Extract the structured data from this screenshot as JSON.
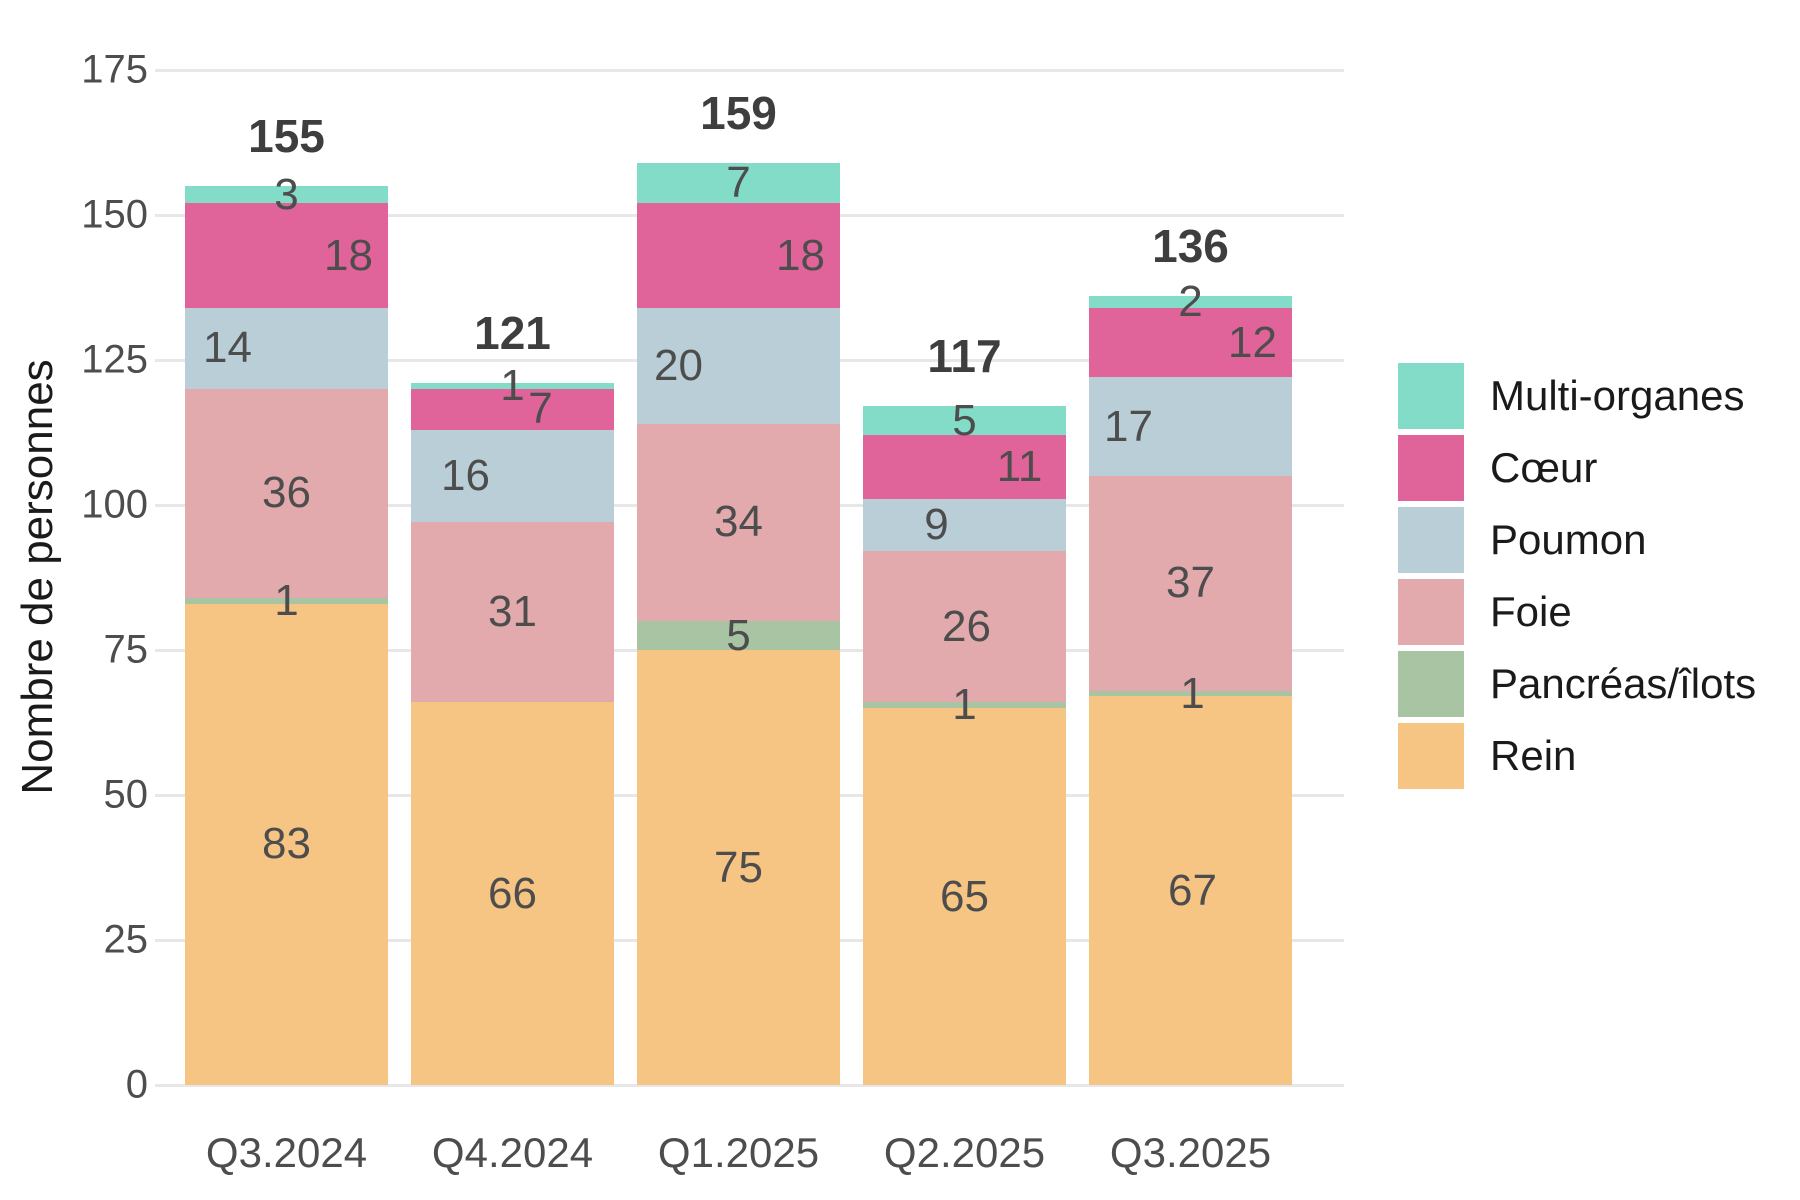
{
  "chart_data": {
    "type": "bar",
    "stacked": true,
    "title": "",
    "xlabel": "",
    "ylabel": "Nombre de personnes",
    "ylim": [
      0,
      175
    ],
    "yticks": [
      0,
      25,
      50,
      75,
      100,
      125,
      150,
      175
    ],
    "grid": "horizontal",
    "legend_position": "right",
    "categories": [
      "Q3.2024",
      "Q4.2024",
      "Q1.2025",
      "Q2.2025",
      "Q3.2025"
    ],
    "series": [
      {
        "name": "Rein",
        "color": "#F6C483",
        "values": [
          83,
          66,
          75,
          65,
          67
        ]
      },
      {
        "name": "Pancréas/îlots",
        "color": "#A8C4A2",
        "values": [
          1,
          0,
          5,
          1,
          1
        ]
      },
      {
        "name": "Foie",
        "color": "#E2AAAC",
        "values": [
          36,
          31,
          34,
          26,
          37
        ]
      },
      {
        "name": "Poumon",
        "color": "#B9CED6",
        "values": [
          14,
          16,
          20,
          9,
          17
        ]
      },
      {
        "name": "Cœur",
        "color": "#E0639A",
        "values": [
          18,
          7,
          18,
          11,
          12
        ]
      },
      {
        "name": "Multi-organes",
        "color": "#82DCC8",
        "values": [
          3,
          1,
          7,
          5,
          2
        ]
      }
    ],
    "totals": [
      155,
      121,
      159,
      117,
      136
    ],
    "legend_order_top_to_bottom": [
      "Multi-organes",
      "Cœur",
      "Poumon",
      "Foie",
      "Pancréas/îlots",
      "Rein"
    ],
    "label_offsets_x": {
      "Rein": [
        0,
        0,
        0,
        0,
        2
      ],
      "Pancréas/îlots": [
        0,
        0,
        0,
        0,
        2
      ],
      "Foie": [
        0,
        0,
        0,
        2,
        0
      ],
      "Poumon": [
        -59,
        -47,
        -60,
        -28,
        -62
      ],
      "Cœur": [
        62,
        28,
        62,
        55,
        62
      ],
      "Multi-organes": [
        0,
        0,
        0,
        0,
        0
      ]
    },
    "colors": {
      "gridline": "#e7e7e7",
      "segment_label": "#4d4d4d",
      "total_label": "#3e3e3e",
      "axis_text": "#4d4d4d"
    }
  }
}
